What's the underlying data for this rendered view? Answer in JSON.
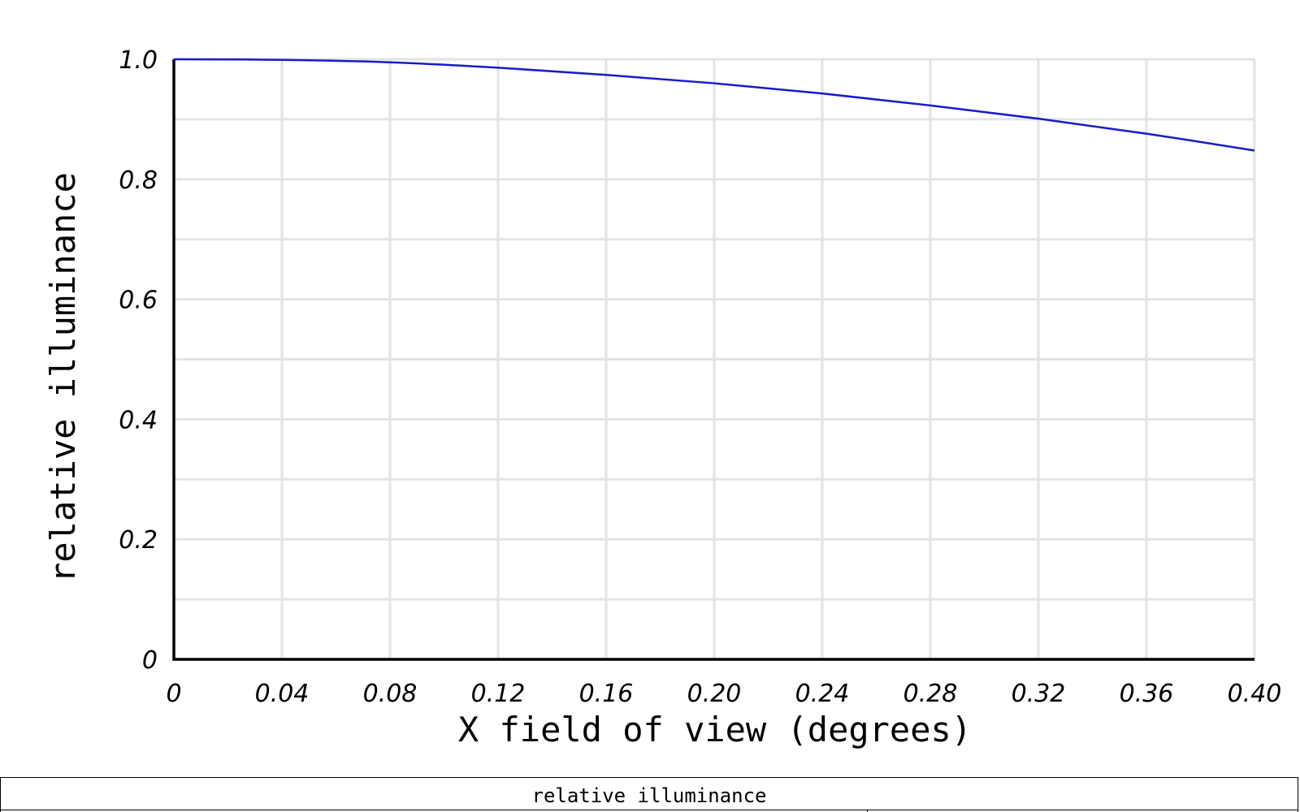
{
  "chart_data": {
    "type": "line",
    "title": "",
    "xlabel": "X field of view (degrees)",
    "ylabel": "relative illuminance",
    "xlim": [
      0,
      0.4
    ],
    "ylim": [
      0,
      1.0
    ],
    "x_ticks": [
      0,
      0.04,
      0.08,
      0.12,
      0.16,
      0.2,
      0.24,
      0.28,
      0.32,
      0.36,
      0.4
    ],
    "x_tick_labels": [
      "0",
      "0.04",
      "0.08",
      "0.12",
      "0.16",
      "0.20",
      "0.24",
      "0.28",
      "0.32",
      "0.36",
      "0.40"
    ],
    "y_ticks": [
      0,
      0.2,
      0.4,
      0.6,
      0.8,
      1.0
    ],
    "y_tick_labels": [
      "0",
      "0.2",
      "0.4",
      "0.6",
      "0.8",
      "1.0"
    ],
    "grid": true,
    "series": [
      {
        "color": "#1a1acc",
        "x": [
          0,
          0.04,
          0.08,
          0.12,
          0.16,
          0.2,
          0.24,
          0.28,
          0.32,
          0.36,
          0.4
        ],
        "y": [
          1.0,
          0.999,
          0.995,
          0.986,
          0.974,
          0.96,
          0.943,
          0.923,
          0.901,
          0.876,
          0.848
        ]
      }
    ]
  },
  "legend_table": {
    "title": "relative illuminance"
  }
}
